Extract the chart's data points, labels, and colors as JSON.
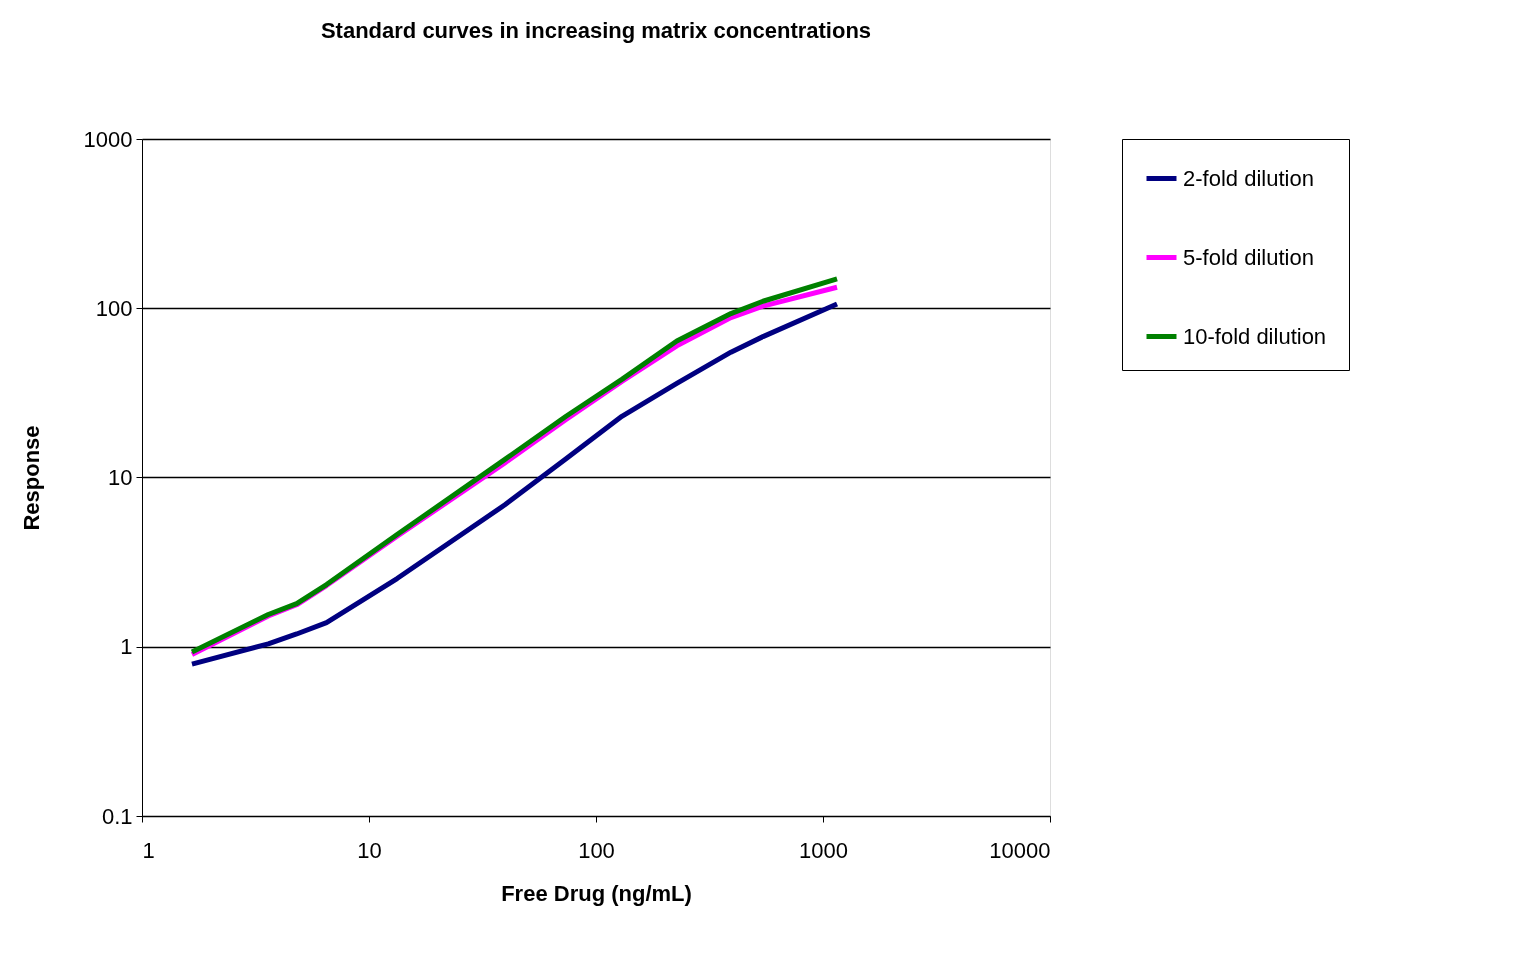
{
  "chart_data": {
    "type": "line",
    "title": "Standard curves in increasing matrix concentrations",
    "xlabel": "Free Drug (ng/mL)",
    "ylabel": "Response",
    "x": [
      1.66,
      3.6,
      4.8,
      6.5,
      13.3,
      39.7,
      73.8,
      130,
      227,
      393,
      544,
      1153
    ],
    "series": [
      {
        "name": "2-fold dilution",
        "color": "#000080",
        "values": [
          0.79,
          1.04,
          1.19,
          1.39,
          2.53,
          6.9,
          12.9,
          23,
          36,
          55,
          68,
          106
        ]
      },
      {
        "name": "5-fold dilution",
        "color": "#ff00ff",
        "values": [
          0.9,
          1.52,
          1.77,
          2.3,
          4.5,
          12.2,
          22,
          37,
          60,
          88,
          103,
          133
        ]
      },
      {
        "name": "10-fold dilution",
        "color": "#008000",
        "values": [
          0.93,
          1.55,
          1.8,
          2.33,
          4.6,
          12.8,
          23,
          38,
          64,
          93,
          110,
          149
        ]
      }
    ],
    "log": "xy",
    "xlim": [
      1,
      10000
    ],
    "xticks": [
      1,
      10,
      100,
      1000,
      10000
    ],
    "ylim": [
      0.1,
      1000
    ],
    "yticks": [
      0.1,
      1,
      10,
      100,
      1000
    ],
    "grid": "y",
    "legend": "right",
    "marker": "none",
    "line_style": "solid"
  }
}
